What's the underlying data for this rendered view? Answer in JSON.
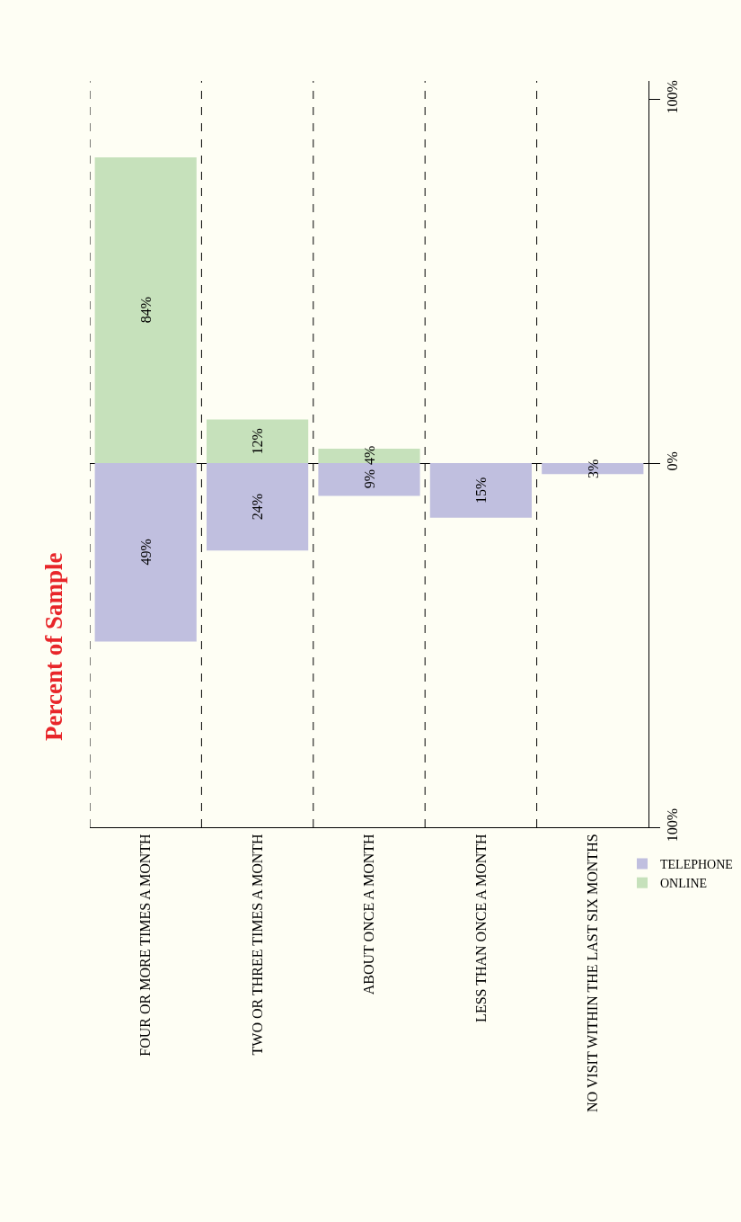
{
  "chart_data": {
    "type": "bar",
    "title": "Percent of Sample",
    "categories": [
      "FOUR OR MORE TIMES A MONTH",
      "TWO OR THREE TIMES A MONTH",
      "ABOUT ONCE A MONTH",
      "LESS THAN ONCE A MONTH",
      "NO VISIT WITHIN THE LAST SIX MONTHS"
    ],
    "series": [
      {
        "name": "TELEPHONE",
        "color": "#c0bfdf",
        "values": [
          49,
          24,
          9,
          15,
          3
        ],
        "base": [
          -49,
          -24,
          -9,
          -15,
          -3
        ],
        "value_labels": [
          "49%",
          "24%",
          "9%",
          "15%",
          "3%"
        ]
      },
      {
        "name": "ONLINE",
        "color": "#c6e1bb",
        "values": [
          84,
          12,
          4,
          null,
          null
        ],
        "value_labels": [
          "84%",
          "12%",
          "4%",
          null,
          null
        ]
      }
    ],
    "ylim": [
      -100,
      105
    ],
    "yticks": [
      {
        "value": -100,
        "label": "100%"
      },
      {
        "value": 0,
        "label": "0%"
      },
      {
        "value": 100,
        "label": "100%"
      }
    ],
    "grid": "x",
    "legend": "bottom right"
  }
}
